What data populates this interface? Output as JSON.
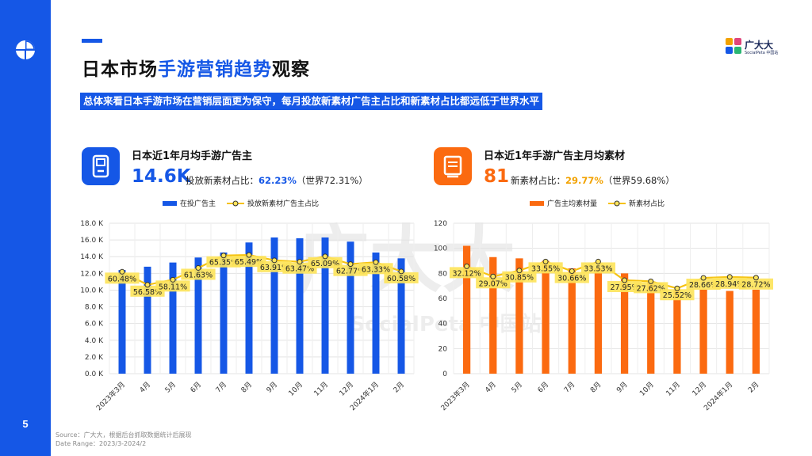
{
  "page_number": "5",
  "title": {
    "part1": "日本市场",
    "part2": "手游营销趋势",
    "part3": "观察"
  },
  "subtitle": "总体来看日本手游市场在营销层面更为保守，每月投放新素材广告主占比和新素材占比都远低于世界水平",
  "brand": {
    "name": "广大大",
    "sub": "SocialPeta 中国站"
  },
  "watermark": {
    "main": "广大大",
    "sub": "SocialPeta 中国站"
  },
  "footer": {
    "source": "Source：广大大，根据后台抓取数据统计后展现",
    "range": "Date Range：2023/3-2024/2"
  },
  "colors": {
    "blue": "#1557e6",
    "orange": "#fb6a10",
    "line": "#f5c211",
    "label_bg": "#fde45c"
  },
  "kpi_left": {
    "icon": "handheld-console-icon",
    "title": "日本近1年月均手游广告主",
    "value": "14.6K",
    "detail_prefix": "投放新素材占比：",
    "detail_value": "62.23%",
    "detail_suffix": "（世界72.31%）"
  },
  "kpi_right": {
    "icon": "creative-material-icon",
    "title": "日本近1年手游广告主月均素材",
    "value": "81",
    "detail_prefix": "新素材占比：",
    "detail_value": "29.77%",
    "detail_suffix": "（世界59.68%）"
  },
  "chart_data": [
    {
      "type": "bar",
      "categories": [
        "2023年3月",
        "4月",
        "5月",
        "6月",
        "7月",
        "8月",
        "9月",
        "10月",
        "11月",
        "12月",
        "2024年1月",
        "2月"
      ],
      "series": [
        {
          "name": "在投广告主",
          "type": "bar",
          "values": [
            12.4,
            12.8,
            13.3,
            13.9,
            14.5,
            15.7,
            16.3,
            16.2,
            16.3,
            15.8,
            14.5,
            13.8
          ]
        },
        {
          "name": "投放新素材广告主占比",
          "type": "line",
          "values": [
            60.48,
            56.58,
            58.11,
            61.63,
            65.35,
            65.49,
            63.91,
            63.47,
            65.09,
            62.77,
            63.33,
            60.58
          ]
        }
      ],
      "y_ticks": [
        "0.0 K",
        "2.0 K",
        "4.0 K",
        "6.0 K",
        "8.0 K",
        "10.0 K",
        "12.0 K",
        "14.0 K",
        "16.0 K",
        "18.0 K"
      ],
      "y_unit": "K",
      "ylim": [
        0,
        18
      ],
      "line_labels": [
        "60.48%",
        "56.58%",
        "58.11%",
        "61.63%",
        "65.35%",
        "65.49%",
        "63.91%",
        "63.47%",
        "65.09%",
        "62.77%",
        "63.33%",
        "60.58%"
      ],
      "legend_position": "top",
      "grid": true
    },
    {
      "type": "bar",
      "categories": [
        "2023年3月",
        "4月",
        "5月",
        "6月",
        "7月",
        "8月",
        "9月",
        "10月",
        "11月",
        "12月",
        "2024年1月",
        "2月"
      ],
      "series": [
        {
          "name": "广告主均素材量",
          "type": "bar",
          "values": [
            102,
            93,
            92,
            90,
            84,
            84,
            80,
            73,
            67,
            67,
            66,
            67
          ]
        },
        {
          "name": "新素材占比",
          "type": "line",
          "values": [
            32.12,
            29.07,
            30.85,
            33.55,
            30.66,
            33.53,
            27.95,
            27.62,
            25.52,
            28.66,
            28.94,
            28.72
          ]
        }
      ],
      "y_ticks": [
        "0",
        "20",
        "40",
        "60",
        "80",
        "100",
        "120"
      ],
      "ylim": [
        0,
        120
      ],
      "line_labels": [
        "32.12%",
        "29.07%",
        "30.85%",
        "33.55%",
        "30.66%",
        "33.53%",
        "27.95%",
        "27.62%",
        "25.52%",
        "28.66%",
        "28.94%",
        "28.72%"
      ],
      "legend_position": "top",
      "grid": true
    }
  ]
}
